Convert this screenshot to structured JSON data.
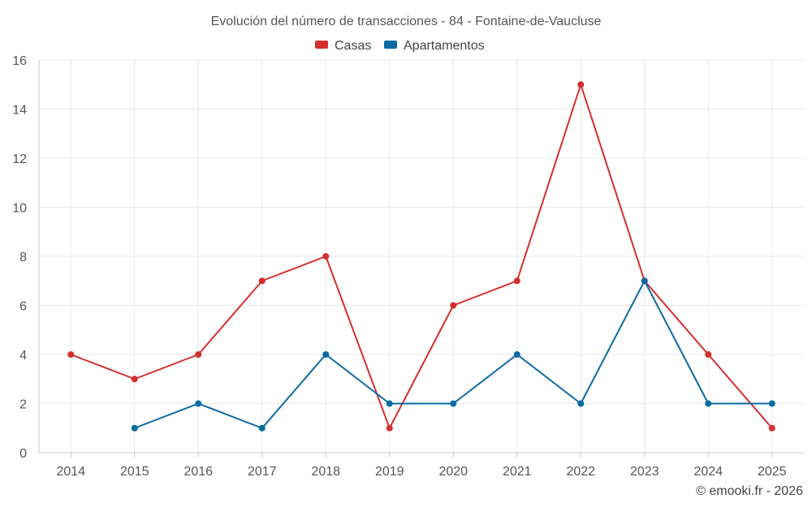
{
  "chart_data": {
    "type": "line",
    "title": "Evolución del número de transacciones - 84 - Fontaine-de-Vaucluse",
    "categories": [
      "2014",
      "2015",
      "2016",
      "2017",
      "2018",
      "2019",
      "2020",
      "2021",
      "2022",
      "2023",
      "2024",
      "2025"
    ],
    "series": [
      {
        "name": "Casas",
        "color": "#d32f2f",
        "values": [
          4,
          3,
          4,
          7,
          8,
          1,
          6,
          7,
          15,
          7,
          4,
          1
        ]
      },
      {
        "name": "Apartamentos",
        "color": "#0b6aa2",
        "values": [
          null,
          1,
          2,
          1,
          4,
          2,
          2,
          4,
          2,
          7,
          2,
          2
        ]
      }
    ],
    "ylim": [
      0,
      16
    ],
    "yticks": [
      "0",
      "2",
      "4",
      "6",
      "8",
      "10",
      "12",
      "14",
      "16"
    ],
    "xlabel": "",
    "ylabel": "",
    "grid": true,
    "legend_position": "top-center",
    "credit": "© emooki.fr - 2026"
  }
}
